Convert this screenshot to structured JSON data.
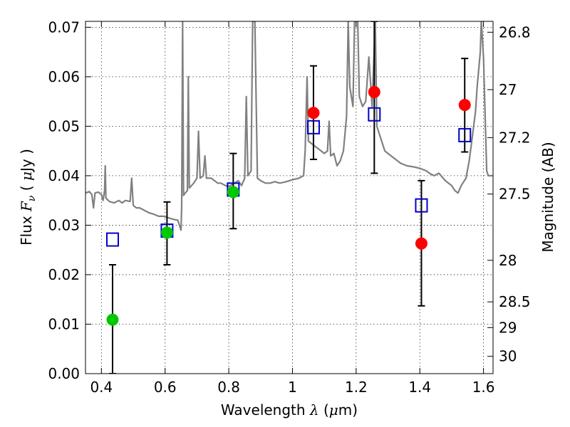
{
  "chart_data": {
    "type": "scatter",
    "xlabel_prefix": "Wavelength  ",
    "xlabel_symbol": "λ",
    "xlabel_unit_open": " (",
    "xlabel_mu": "μ",
    "xlabel_unit_close": "m)",
    "ylabel_prefix": "Flux  ",
    "ylabel_symbol": "F",
    "ylabel_sub": "ν",
    "ylabel_unit_open": "  ( ",
    "ylabel_mu": "μ",
    "ylabel_unit_close": "Jy )",
    "y2label": "Magnitude (AB)",
    "xlim": [
      0.35,
      1.63
    ],
    "ylim": [
      0.0,
      0.0712
    ],
    "grid": true,
    "x_ticks": [
      {
        "value": 0.4,
        "label": "0.4"
      },
      {
        "value": 0.6,
        "label": "0.6"
      },
      {
        "value": 0.8,
        "label": "0.8"
      },
      {
        "value": 1.0,
        "label": "1"
      },
      {
        "value": 1.2,
        "label": "1.2"
      },
      {
        "value": 1.4,
        "label": "1.4"
      },
      {
        "value": 1.6,
        "label": "1.6"
      }
    ],
    "y_ticks": [
      {
        "value": 0.0,
        "label": "0.00"
      },
      {
        "value": 0.01,
        "label": "0.01"
      },
      {
        "value": 0.02,
        "label": "0.02"
      },
      {
        "value": 0.03,
        "label": "0.03"
      },
      {
        "value": 0.04,
        "label": "0.04"
      },
      {
        "value": 0.05,
        "label": "0.05"
      },
      {
        "value": 0.06,
        "label": "0.06"
      },
      {
        "value": 0.07,
        "label": "0.07"
      }
    ],
    "y2_ticks": [
      {
        "flux": 0.069,
        "label": "26.8"
      },
      {
        "flux": 0.0574,
        "label": "27"
      },
      {
        "flux": 0.0477,
        "label": "27.2"
      },
      {
        "flux": 0.0363,
        "label": "27.5"
      },
      {
        "flux": 0.0229,
        "label": "28"
      },
      {
        "flux": 0.0145,
        "label": "28.5"
      },
      {
        "flux": 0.0093,
        "label": "29"
      },
      {
        "flux": 0.0035,
        "label": "30"
      }
    ],
    "series": [
      {
        "marker": "circle",
        "color": "#00c800",
        "points": [
          {
            "x": 0.435,
            "y": 0.0109,
            "err_low": 0.0,
            "err_high": 0.022
          },
          {
            "x": 0.606,
            "y": 0.0285,
            "err_low": 0.022,
            "err_high": 0.0347
          },
          {
            "x": 0.814,
            "y": 0.0367,
            "err_low": 0.0293,
            "err_high": 0.0445
          }
        ]
      },
      {
        "marker": "circle",
        "color": "#ff0000",
        "points": [
          {
            "x": 1.066,
            "y": 0.0527,
            "err_low": 0.0433,
            "err_high": 0.0622
          },
          {
            "x": 1.257,
            "y": 0.0569,
            "err_low": 0.0405,
            "err_high": 0.0712
          },
          {
            "x": 1.405,
            "y": 0.0263,
            "err_low": 0.0137,
            "err_high": 0.039
          },
          {
            "x": 1.541,
            "y": 0.0543,
            "err_low": 0.0448,
            "err_high": 0.0637
          }
        ]
      },
      {
        "marker": "open-square",
        "color": "#0000cc",
        "points": [
          {
            "x": 0.435,
            "y": 0.0271
          },
          {
            "x": 0.606,
            "y": 0.0289
          },
          {
            "x": 0.814,
            "y": 0.0372
          },
          {
            "x": 1.066,
            "y": 0.0498
          },
          {
            "x": 1.257,
            "y": 0.0524
          },
          {
            "x": 1.405,
            "y": 0.034
          },
          {
            "x": 1.541,
            "y": 0.0482
          }
        ]
      },
      {
        "marker": "line",
        "color": "#808080",
        "points": [
          [
            0.35,
            0.0365
          ],
          [
            0.362,
            0.0368
          ],
          [
            0.37,
            0.0362
          ],
          [
            0.375,
            0.0335
          ],
          [
            0.38,
            0.0365
          ],
          [
            0.39,
            0.0367
          ],
          [
            0.4,
            0.0362
          ],
          [
            0.405,
            0.035
          ],
          [
            0.41,
            0.037
          ],
          [
            0.412,
            0.042
          ],
          [
            0.414,
            0.0355
          ],
          [
            0.425,
            0.0348
          ],
          [
            0.44,
            0.0345
          ],
          [
            0.455,
            0.035
          ],
          [
            0.465,
            0.0345
          ],
          [
            0.475,
            0.035
          ],
          [
            0.49,
            0.0348
          ],
          [
            0.495,
            0.0395
          ],
          [
            0.5,
            0.034
          ],
          [
            0.51,
            0.0335
          ],
          [
            0.52,
            0.0335
          ],
          [
            0.535,
            0.033
          ],
          [
            0.55,
            0.0325
          ],
          [
            0.565,
            0.0322
          ],
          [
            0.58,
            0.0318
          ],
          [
            0.595,
            0.0318
          ],
          [
            0.61,
            0.0315
          ],
          [
            0.625,
            0.0312
          ],
          [
            0.64,
            0.031
          ],
          [
            0.645,
            0.03
          ],
          [
            0.65,
            0.029
          ],
          [
            0.652,
            0.034
          ],
          [
            0.655,
            0.0712
          ],
          [
            0.658,
            0.036
          ],
          [
            0.663,
            0.0365
          ],
          [
            0.67,
            0.037
          ],
          [
            0.673,
            0.06
          ],
          [
            0.676,
            0.0375
          ],
          [
            0.69,
            0.0385
          ],
          [
            0.7,
            0.0395
          ],
          [
            0.705,
            0.049
          ],
          [
            0.71,
            0.0395
          ],
          [
            0.72,
            0.04
          ],
          [
            0.725,
            0.044
          ],
          [
            0.73,
            0.0395
          ],
          [
            0.745,
            0.0395
          ],
          [
            0.755,
            0.039
          ],
          [
            0.765,
            0.0385
          ],
          [
            0.775,
            0.0385
          ],
          [
            0.79,
            0.038
          ],
          [
            0.8,
            0.0378
          ],
          [
            0.83,
            0.039
          ],
          [
            0.84,
            0.038
          ],
          [
            0.85,
            0.0395
          ],
          [
            0.855,
            0.056
          ],
          [
            0.86,
            0.04
          ],
          [
            0.87,
            0.041
          ],
          [
            0.875,
            0.0712
          ],
          [
            0.882,
            0.0712
          ],
          [
            0.89,
            0.0395
          ],
          [
            0.9,
            0.039
          ],
          [
            0.915,
            0.0385
          ],
          [
            0.93,
            0.0385
          ],
          [
            0.945,
            0.0388
          ],
          [
            0.96,
            0.0385
          ],
          [
            0.975,
            0.0387
          ],
          [
            0.99,
            0.039
          ],
          [
            1.0,
            0.0392
          ],
          [
            1.02,
            0.0395
          ],
          [
            1.035,
            0.04
          ],
          [
            1.04,
            0.045
          ],
          [
            1.046,
            0.06
          ],
          [
            1.05,
            0.047
          ],
          [
            1.07,
            0.046
          ],
          [
            1.09,
            0.045
          ],
          [
            1.1,
            0.0445
          ],
          [
            1.11,
            0.045
          ],
          [
            1.115,
            0.051
          ],
          [
            1.12,
            0.044
          ],
          [
            1.13,
            0.0445
          ],
          [
            1.14,
            0.042
          ],
          [
            1.15,
            0.043
          ],
          [
            1.16,
            0.045
          ],
          [
            1.17,
            0.052
          ],
          [
            1.175,
            0.0712
          ],
          [
            1.18,
            0.058
          ],
          [
            1.19,
            0.054
          ],
          [
            1.195,
            0.0712
          ],
          [
            1.205,
            0.0712
          ],
          [
            1.21,
            0.056
          ],
          [
            1.22,
            0.054
          ],
          [
            1.23,
            0.055
          ],
          [
            1.24,
            0.064
          ],
          [
            1.25,
            0.054
          ],
          [
            1.26,
            0.0712
          ],
          [
            1.265,
            0.05
          ],
          [
            1.28,
            0.047
          ],
          [
            1.29,
            0.045
          ],
          [
            1.3,
            0.0445
          ],
          [
            1.32,
            0.0435
          ],
          [
            1.34,
            0.0425
          ],
          [
            1.36,
            0.042
          ],
          [
            1.38,
            0.0418
          ],
          [
            1.4,
            0.0415
          ],
          [
            1.42,
            0.041
          ],
          [
            1.43,
            0.0405
          ],
          [
            1.445,
            0.04
          ],
          [
            1.46,
            0.0405
          ],
          [
            1.48,
            0.039
          ],
          [
            1.5,
            0.038
          ],
          [
            1.51,
            0.037
          ],
          [
            1.52,
            0.0365
          ],
          [
            1.53,
            0.038
          ],
          [
            1.545,
            0.0395
          ],
          [
            1.555,
            0.043
          ],
          [
            1.565,
            0.048
          ],
          [
            1.575,
            0.053
          ],
          [
            1.58,
            0.058
          ],
          [
            1.59,
            0.065
          ],
          [
            1.593,
            0.0712
          ],
          [
            1.6,
            0.064
          ],
          [
            1.606,
            0.05
          ],
          [
            1.61,
            0.041
          ],
          [
            1.615,
            0.04
          ],
          [
            1.63,
            0.04
          ]
        ]
      }
    ]
  }
}
